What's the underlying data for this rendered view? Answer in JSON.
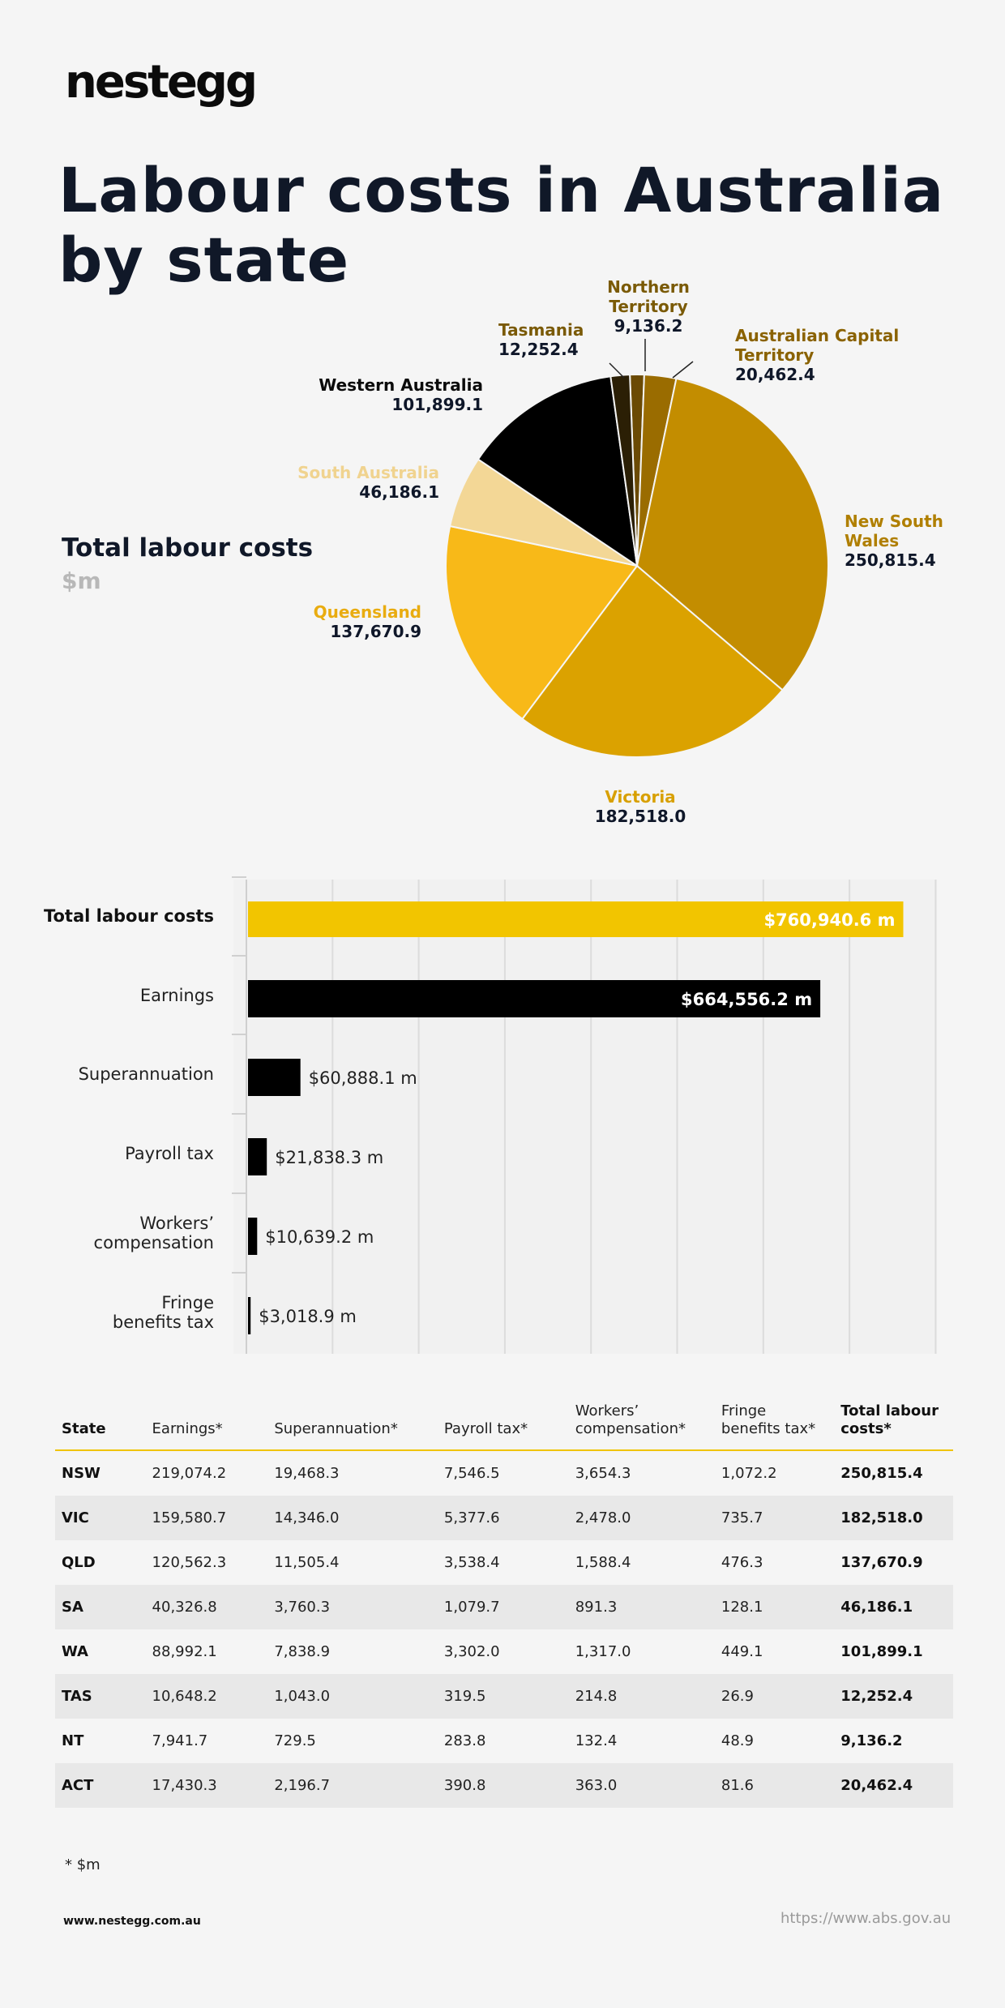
{
  "brand": {
    "logo": "nestegg"
  },
  "header": {
    "title": "Labour costs in Australia by state"
  },
  "pie_section": {
    "heading": "Total labour costs",
    "unit": "$m"
  },
  "colors": {
    "nsw": "#c38d00",
    "vic": "#dba200",
    "qld": "#f8b918",
    "sa": "#f3d796",
    "wa": "#000000",
    "tas": "#2b1f05",
    "nt": "#6b4a04",
    "act": "#9a6c00",
    "accent": "#f2c500",
    "bar_dark": "#000000",
    "label_gold": "#8a6200"
  },
  "chart_data": [
    {
      "type": "pie",
      "title": "Total labour costs",
      "unit": "$m",
      "slices": [
        {
          "label": "New South Wales",
          "value": 250815.4,
          "display": "250,815.4",
          "color": "#c38d00",
          "label_color": "#b07f00"
        },
        {
          "label": "Victoria",
          "value": 182518.0,
          "display": "182,518.0",
          "color": "#dba200",
          "label_color": "#d8a000"
        },
        {
          "label": "Queensland",
          "value": 137670.9,
          "display": "137,670.9",
          "color": "#f8b918",
          "label_color": "#e9ac10"
        },
        {
          "label": "South Australia",
          "value": 46186.1,
          "display": "46,186.1",
          "color": "#f3d796",
          "label_color": "#f0d38f"
        },
        {
          "label": "Western Australia",
          "value": 101899.1,
          "display": "101,899.1",
          "color": "#000000",
          "label_color": "#0b0b0b"
        },
        {
          "label": "Tasmania",
          "value": 12252.4,
          "display": "12,252.4",
          "color": "#2b1f05",
          "label_color": "#7a5a06"
        },
        {
          "label": "Northern Territory",
          "value": 9136.2,
          "display": "9,136.2",
          "color": "#6b4a04",
          "label_color": "#7a5a06"
        },
        {
          "label": "Australian Capital Territory",
          "value": 20462.4,
          "display": "20,462.4",
          "color": "#9a6c00",
          "label_color": "#8a6200"
        }
      ]
    },
    {
      "type": "bar",
      "orientation": "horizontal",
      "categories": [
        "Total labour costs",
        "Earnings",
        "Superannuation",
        "Payroll tax",
        "Workers’ compensation",
        "Fringe benefits tax"
      ],
      "values": [
        760940.6,
        664556.2,
        60888.1,
        21838.3,
        10639.2,
        3018.9
      ],
      "data_labels": [
        "$760,940.6 m",
        "$664,556.2 m",
        "$60,888.1 m",
        "$21,838.3 m",
        "$10,639.2 m",
        "$3,018.9 m"
      ],
      "xlim": [
        0,
        800000
      ],
      "grid": true
    },
    {
      "type": "table",
      "columns": [
        "State",
        "Earnings*",
        "Superannuation*",
        "Payroll tax*",
        "Workers’ compensation*",
        "Fringe benefits tax*",
        "Total labour costs*"
      ],
      "rows": [
        [
          "NSW",
          "219,074.2",
          "19,468.3",
          "7,546.5",
          "3,654.3",
          "1,072.2",
          "250,815.4"
        ],
        [
          "VIC",
          "159,580.7",
          "14,346.0",
          "5,377.6",
          "2,478.0",
          "735.7",
          "182,518.0"
        ],
        [
          "QLD",
          "120,562.3",
          "11,505.4",
          "3,538.4",
          "1,588.4",
          "476.3",
          "137,670.9"
        ],
        [
          "SA",
          "40,326.8",
          "3,760.3",
          "1,079.7",
          "891.3",
          "128.1",
          "46,186.1"
        ],
        [
          "WA",
          "88,992.1",
          "7,838.9",
          "3,302.0",
          "1,317.0",
          "449.1",
          "101,899.1"
        ],
        [
          "TAS",
          "10,648.2",
          "1,043.0",
          "319.5",
          "214.8",
          "26.9",
          "12,252.4"
        ],
        [
          "NT",
          "7,941.7",
          "729.5",
          "283.8",
          "132.4",
          "48.9",
          "9,136.2"
        ],
        [
          "ACT",
          "17,430.3",
          "2,196.7",
          "390.8",
          "363.0",
          "81.6",
          "20,462.4"
        ]
      ]
    }
  ],
  "footer": {
    "footnote": "* $m",
    "site": "www.nestegg.com.au",
    "source": "https://www.abs.gov.au"
  }
}
